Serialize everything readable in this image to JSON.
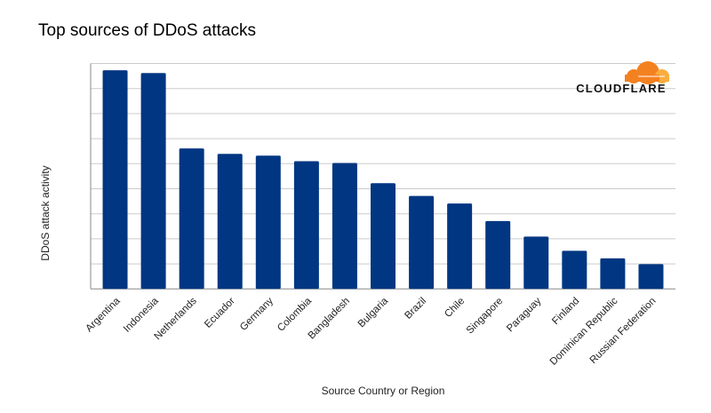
{
  "chart_data": {
    "type": "bar",
    "title": "Top sources of DDoS attacks",
    "xlabel": "Source Country or Region",
    "ylabel": "DDoS attack activity",
    "categories": [
      "Argentina",
      "Indonesia",
      "Netherlands",
      "Ecuador",
      "Germany",
      "Colombia",
      "Bangladesh",
      "Bulgaria",
      "Brazil",
      "Chile",
      "Singapore",
      "Paraguay",
      "Finland",
      "Dominican Republic",
      "Russian Federation"
    ],
    "values": [
      8.73,
      8.62,
      5.61,
      5.39,
      5.32,
      5.1,
      5.03,
      4.22,
      3.71,
      3.41,
      2.71,
      2.09,
      1.52,
      1.22,
      0.99
    ],
    "ylim": [
      0,
      9
    ],
    "y_tick_labels_shown": false,
    "grid": true,
    "legend": "none",
    "bar_color": "#003682",
    "grid_color": "#cccccc"
  },
  "logo": {
    "text": "CLOUDFLARE",
    "cloud_color": "#f48120",
    "cloud_light_color": "#faad3f"
  }
}
